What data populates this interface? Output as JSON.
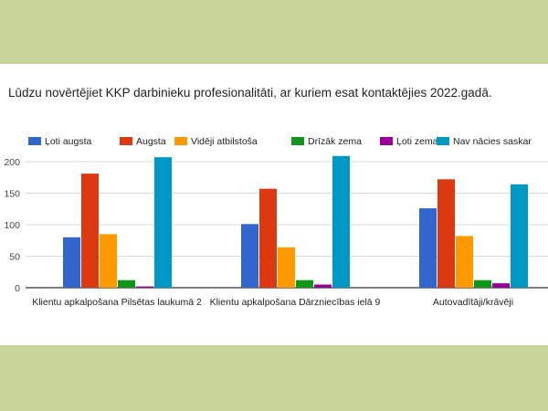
{
  "colors": {
    "background": "#c9d49a",
    "panel": "#ffffff",
    "grid": "#d9d9d9",
    "baseline": "#333333"
  },
  "chart_data": {
    "type": "bar",
    "title": "Lūdzu novērtējiet KKP darbinieku profesionalitāti, ar kuriem esat kontaktējies 2022.gadā.",
    "categories": [
      "Klientu apkalpošana Pilsētas laukumā 2",
      "Klientu apkalpošana Dārzniecības ielā 9",
      "Autovadītāji/krāvēji"
    ],
    "series": [
      {
        "name": "Ļoti augsta",
        "color": "#3366cc",
        "values": [
          80,
          101,
          126
        ]
      },
      {
        "name": "Augsta",
        "color": "#dc3912",
        "values": [
          181,
          157,
          172
        ]
      },
      {
        "name": "Vidēji atbilstoša",
        "color": "#ff9900",
        "values": [
          85,
          64,
          82
        ]
      },
      {
        "name": "Drīzāk zema",
        "color": "#109618",
        "values": [
          12,
          12,
          12
        ]
      },
      {
        "name": "Ļoti zema",
        "color": "#990099",
        "values": [
          2,
          5,
          7
        ]
      },
      {
        "name": "Nav nācies saskar",
        "color": "#0099c6",
        "values": [
          207,
          209,
          164
        ]
      }
    ],
    "ylim": [
      0,
      200
    ],
    "yticks": [
      0,
      50,
      100,
      150,
      200
    ],
    "grid": true,
    "legend": "top"
  }
}
